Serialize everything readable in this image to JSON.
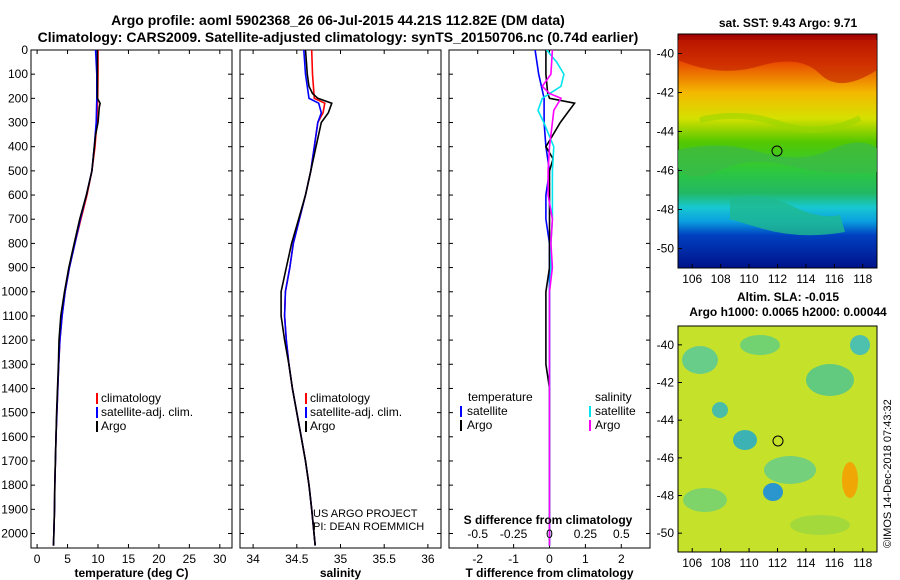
{
  "header": {
    "title_line1": "Argo profile: aoml 5902368_26 06-Jul-2015 44.21S 112.82E (DM data)",
    "title_line2": "Climatology: CARS2009. Satellite-adjusted climatology: synTS_20150706.nc (0.74d earlier)"
  },
  "depth_ticks": [
    "0",
    "100",
    "200",
    "300",
    "400",
    "500",
    "600",
    "700",
    "800",
    "900",
    "1000",
    "1100",
    "1200",
    "1300",
    "1400",
    "1500",
    "1600",
    "1700",
    "1800",
    "1900",
    "2000"
  ],
  "colors": {
    "climatology": "#ff0000",
    "satellite": "#0000ff",
    "argo": "#000000",
    "sal_satellite": "#00e5ee",
    "sal_argo": "#ff00ff"
  },
  "chart_data": [
    {
      "type": "line",
      "name": "temperature",
      "xlabel": "temperature (deg C)",
      "ylabel": "depth",
      "xlim": [
        -1,
        32
      ],
      "ylim": [
        2060,
        0
      ],
      "x_ticks": [
        "0",
        "5",
        "10",
        "15",
        "20",
        "25",
        "30"
      ],
      "legend": [
        "climatology",
        "satellite-adj. clim.",
        "Argo"
      ],
      "series": [
        {
          "name": "climatology",
          "depth": [
            0,
            100,
            200,
            300,
            400,
            500,
            600,
            700,
            800,
            900,
            1000,
            1100,
            1200,
            1300,
            1400,
            1500,
            1600,
            1700,
            1800,
            1900,
            2050
          ],
          "values": [
            10.0,
            10.0,
            9.95,
            9.8,
            9.5,
            9.0,
            8.2,
            7.2,
            6.2,
            5.3,
            4.6,
            4.1,
            3.75,
            3.55,
            3.4,
            3.25,
            3.1,
            3.0,
            2.9,
            2.85,
            2.7
          ]
        },
        {
          "name": "satellite-adj. clim.",
          "depth": [
            0,
            100,
            200,
            300,
            400,
            500,
            600,
            700,
            800,
            900,
            1000,
            1100,
            1200,
            1300,
            1400,
            1500,
            1600,
            1700,
            1800,
            1900,
            2050
          ],
          "values": [
            9.6,
            9.8,
            9.8,
            9.7,
            9.4,
            9.0,
            8.1,
            7.1,
            6.2,
            5.3,
            4.6,
            4.1,
            3.75,
            3.55,
            3.4,
            3.25,
            3.1,
            3.0,
            2.9,
            2.85,
            2.7
          ]
        },
        {
          "name": "Argo",
          "depth": [
            0,
            100,
            180,
            200,
            220,
            240,
            300,
            350,
            400,
            500,
            600,
            700,
            800,
            900,
            1000,
            1100,
            1200,
            1300,
            1400,
            1500,
            1600,
            1700,
            1800,
            1900,
            2050
          ],
          "values": [
            9.9,
            9.9,
            9.9,
            9.9,
            10.35,
            10.2,
            10.0,
            9.6,
            9.4,
            9.0,
            8.1,
            7.0,
            6.1,
            5.2,
            4.5,
            3.9,
            3.6,
            3.5,
            3.35,
            3.2,
            3.1,
            3.0,
            2.9,
            2.85,
            2.7
          ]
        }
      ]
    },
    {
      "type": "line",
      "name": "salinity",
      "xlabel": "salinity",
      "ylabel": "depth",
      "xlim": [
        33.85,
        36.15
      ],
      "ylim": [
        2060,
        0
      ],
      "x_ticks": [
        "34",
        "34.5",
        "35",
        "35.5",
        "36"
      ],
      "legend": [
        "climatology",
        "satellite-adj. clim.",
        "Argo"
      ],
      "annotation": [
        "US ARGO PROJECT",
        "PI: DEAN ROEMMICH"
      ],
      "series": [
        {
          "name": "climatology",
          "depth": [
            0,
            100,
            200,
            220,
            260,
            300,
            400,
            500,
            600,
            700,
            800,
            900,
            1000,
            1100,
            1200,
            1300,
            1400,
            1500,
            1600,
            1700,
            1800,
            1900,
            2050
          ],
          "values": [
            34.67,
            34.68,
            34.7,
            34.82,
            34.8,
            34.74,
            34.7,
            34.66,
            34.6,
            34.53,
            34.46,
            34.42,
            34.37,
            34.36,
            34.38,
            34.41,
            34.45,
            34.5,
            34.55,
            34.6,
            34.64,
            34.67,
            34.71
          ]
        },
        {
          "name": "satellite-adj. clim.",
          "depth": [
            0,
            100,
            200,
            220,
            260,
            300,
            400,
            500,
            600,
            700,
            800,
            900,
            1000,
            1100,
            1200,
            1300,
            1400,
            1500,
            1600,
            1700,
            1800,
            1900,
            2050
          ],
          "values": [
            34.58,
            34.6,
            34.64,
            34.75,
            34.78,
            34.74,
            34.7,
            34.66,
            34.6,
            34.53,
            34.46,
            34.42,
            34.37,
            34.36,
            34.38,
            34.41,
            34.45,
            34.5,
            34.55,
            34.6,
            34.64,
            34.67,
            34.71
          ]
        },
        {
          "name": "Argo",
          "depth": [
            0,
            100,
            150,
            180,
            200,
            220,
            260,
            300,
            400,
            500,
            600,
            700,
            800,
            900,
            1000,
            1100,
            1200,
            1300,
            1400,
            1500,
            1600,
            1700,
            1800,
            1900,
            2050
          ],
          "values": [
            34.6,
            34.62,
            34.64,
            34.68,
            34.74,
            34.9,
            34.86,
            34.78,
            34.72,
            34.66,
            34.6,
            34.52,
            34.44,
            34.38,
            34.32,
            34.32,
            34.36,
            34.41,
            34.45,
            34.5,
            34.55,
            34.6,
            34.64,
            34.67,
            34.71
          ]
        }
      ]
    },
    {
      "type": "line",
      "name": "difference",
      "xlabel": "T difference from climatology",
      "ylabel": "depth",
      "xlim": [
        -2.8,
        2.8
      ],
      "ylim": [
        2060,
        0
      ],
      "x_ticks": [
        "-2",
        "-1",
        "0",
        "1",
        "2"
      ],
      "secondary_xlabel": "S difference from climatology",
      "secondary_ticks": [
        "-0.5",
        "-0.25",
        "0",
        "0.25",
        "0.5"
      ],
      "legend_left_title": "temperature",
      "legend_left": [
        "satellite",
        "Argo"
      ],
      "legend_right_title": "salinity",
      "legend_right": [
        "satellite",
        "Argo"
      ],
      "series": [
        {
          "name": "temperature satellite",
          "depth": [
            0,
            100,
            200,
            300,
            400,
            500,
            600,
            700,
            800,
            900,
            1000,
            1100,
            1200,
            1300,
            1400,
            1500,
            1600,
            1700,
            1800,
            1900,
            2050
          ],
          "values": [
            -0.4,
            -0.3,
            -0.15,
            -0.15,
            -0.1,
            0,
            -0.1,
            -0.1,
            0,
            0,
            0,
            0,
            0,
            0,
            0,
            0,
            0,
            0,
            0,
            0,
            0
          ]
        },
        {
          "name": "temperature Argo",
          "depth": [
            0,
            100,
            180,
            200,
            220,
            260,
            300,
            350,
            400,
            450,
            500,
            600,
            700,
            800,
            900,
            1000,
            1100,
            1200,
            1300,
            1400,
            1500,
            1600,
            1700,
            1800,
            1900,
            2050
          ],
          "values": [
            -0.1,
            -0.1,
            -0.05,
            0,
            0.7,
            0.5,
            0.3,
            0.1,
            -0.1,
            0.1,
            0,
            0,
            0,
            0,
            0,
            -0.1,
            -0.1,
            -0.1,
            -0.1,
            0,
            0,
            0,
            0,
            0,
            0,
            0
          ]
        },
        {
          "name": "salinity satellite",
          "depth": [
            0,
            50,
            100,
            150,
            200,
            250,
            300,
            400,
            500,
            600,
            700,
            800,
            900,
            1000,
            1100,
            1200,
            1300,
            1400,
            1500,
            1600,
            1700,
            1800,
            1900,
            2050
          ],
          "values": [
            -0.02,
            0.05,
            0.1,
            0.08,
            -0.05,
            -0.08,
            -0.04,
            0.03,
            0.02,
            0.02,
            0.02,
            0.01,
            0.01,
            0,
            0,
            0,
            0,
            0,
            0,
            0,
            0,
            0,
            0,
            0
          ]
        },
        {
          "name": "salinity Argo",
          "depth": [
            0,
            100,
            150,
            180,
            200,
            250,
            300,
            400,
            500,
            600,
            700,
            800,
            900,
            1000,
            1100,
            1200,
            1300,
            1400,
            1500,
            1600,
            1700,
            1800,
            1900,
            2050
          ],
          "values": [
            0.02,
            0.01,
            -0.05,
            0,
            0.08,
            0.03,
            0.02,
            0.0,
            -0.01,
            -0.01,
            0.02,
            0.01,
            0.02,
            0.0,
            0.0,
            0.0,
            0.0,
            0.0,
            0,
            0,
            0,
            0,
            0,
            0
          ]
        }
      ]
    }
  ],
  "map_sst": {
    "title": "sat. SST: 9.43 Argo: 9.71",
    "y_ticks": [
      "-40",
      "-42",
      "-44",
      "-46",
      "-48",
      "-50"
    ],
    "x_ticks": [
      "106",
      "108",
      "110",
      "112",
      "114",
      "116",
      "118"
    ]
  },
  "map_sla": {
    "title_line1": "Altim. SLA: -0.015",
    "title_line2": "Argo h1000: 0.0065 h2000: 0.00044",
    "y_ticks": [
      "-40",
      "-42",
      "-44",
      "-46",
      "-48",
      "-50"
    ],
    "x_ticks": [
      "106",
      "108",
      "110",
      "112",
      "114",
      "116",
      "118"
    ]
  },
  "credit": "©IMOS 14-Dec-2018 07:43:32"
}
